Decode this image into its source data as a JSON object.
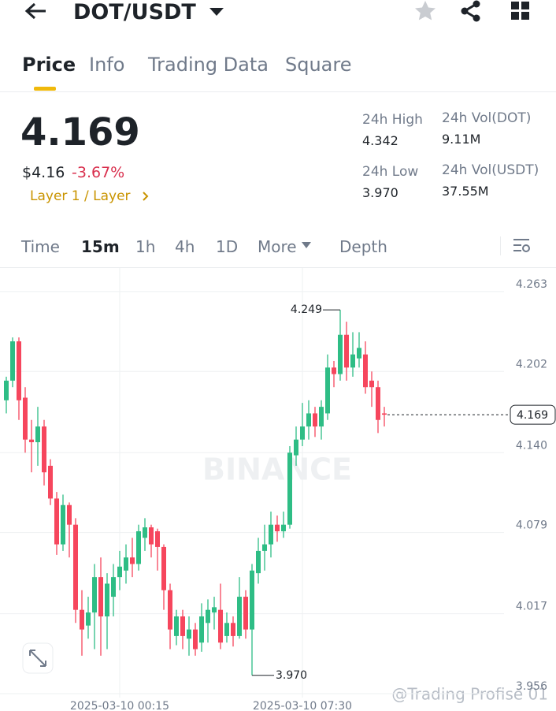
{
  "header": {
    "pair": "DOT/USDT"
  },
  "tabs": [
    "Price",
    "Info",
    "Trading Data",
    "Square"
  ],
  "price": {
    "last": "4.169",
    "usd": "$4.16",
    "change": "-3.67%",
    "tag": "Layer 1 / Layer"
  },
  "stats": [
    {
      "label": "24h High",
      "value": "4.342"
    },
    {
      "label": "24h Vol(DOT)",
      "value": "9.11M"
    },
    {
      "label": "24h Low",
      "value": "3.970"
    },
    {
      "label": "24h Vol(USDT)",
      "value": "37.55M"
    }
  ],
  "timeframes": [
    "Time",
    "15m",
    "1h",
    "4h",
    "1D",
    "More",
    "Depth"
  ],
  "watermark": "BINANCE",
  "credit": "@Trading Profise 01",
  "chart_data": {
    "type": "candlestick",
    "categories": [
      null,
      null,
      null,
      null,
      null,
      null,
      null,
      null,
      null,
      null,
      null,
      null,
      null,
      null,
      null,
      null,
      null,
      null,
      "2025-03-10 00:15",
      null,
      null,
      null,
      null,
      null,
      null,
      null,
      null,
      null,
      null,
      null,
      null,
      null,
      null,
      null,
      null,
      null,
      null,
      null,
      null,
      null,
      null,
      null,
      null,
      null,
      null,
      null,
      null,
      "2025-03-10 07:30",
      null,
      null,
      null,
      null,
      null,
      null,
      null,
      null,
      null,
      null,
      null,
      null,
      null
    ],
    "open": [
      4.18,
      4.195,
      4.225,
      4.182,
      4.15,
      4.148,
      4.16,
      4.13,
      4.105,
      4.07,
      4.1,
      4.085,
      4.02,
      4.008,
      4.018,
      4.045,
      4.015,
      4.03,
      4.045,
      4.05,
      4.06,
      4.055,
      4.075,
      4.083,
      4.08,
      4.068,
      4.035,
      4.0,
      4.015,
      3.998,
      4.005,
      3.995,
      4.01,
      4.018,
      4.02,
      4.0,
      4.01,
      4.0,
      4.03,
      4.005,
      4.048,
      4.065,
      4.07,
      4.085,
      4.08,
      4.085,
      4.138,
      4.15,
      4.16,
      4.17,
      4.16,
      4.17,
      4.205,
      4.2,
      4.23,
      4.205,
      4.212,
      4.215,
      4.195,
      4.19,
      4.17
    ],
    "high": [
      4.198,
      4.228,
      4.228,
      4.19,
      4.165,
      4.175,
      4.165,
      4.135,
      4.11,
      4.108,
      4.102,
      4.09,
      4.035,
      4.03,
      4.055,
      4.06,
      4.048,
      4.055,
      4.065,
      4.07,
      4.075,
      4.085,
      4.09,
      4.085,
      4.082,
      4.07,
      4.04,
      4.02,
      4.02,
      4.015,
      4.01,
      4.025,
      4.028,
      4.03,
      4.04,
      4.018,
      4.015,
      4.045,
      4.035,
      4.055,
      4.075,
      4.085,
      4.095,
      4.092,
      4.095,
      4.145,
      4.16,
      4.178,
      4.18,
      4.175,
      4.18,
      4.215,
      4.21,
      4.249,
      4.24,
      4.232,
      4.232,
      4.225,
      4.202,
      4.195,
      4.175
    ],
    "low": [
      4.17,
      4.19,
      4.165,
      4.14,
      4.125,
      4.13,
      4.115,
      4.1,
      4.062,
      4.065,
      4.06,
      4.01,
      3.985,
      3.998,
      3.99,
      3.985,
      3.99,
      4.015,
      4.035,
      4.04,
      4.045,
      4.05,
      4.065,
      4.06,
      4.05,
      4.02,
      3.99,
      3.993,
      3.99,
      3.985,
      3.985,
      3.988,
      3.995,
      4.005,
      3.99,
      3.995,
      3.992,
      3.998,
      3.998,
      3.97,
      4.04,
      4.05,
      4.06,
      4.072,
      4.075,
      4.082,
      4.13,
      4.145,
      4.15,
      4.152,
      4.15,
      4.165,
      4.19,
      4.195,
      4.195,
      4.198,
      4.205,
      4.185,
      4.175,
      4.155,
      4.16
    ],
    "close": [
      4.195,
      4.225,
      4.18,
      4.15,
      4.148,
      4.16,
      4.125,
      4.105,
      4.07,
      4.1,
      4.085,
      4.02,
      4.005,
      4.018,
      4.045,
      4.015,
      4.04,
      4.045,
      4.053,
      4.06,
      4.055,
      4.08,
      4.083,
      4.07,
      4.068,
      4.035,
      4.005,
      4.015,
      4.0,
      4.005,
      3.99,
      4.015,
      4.02,
      4.022,
      3.995,
      4.01,
      4.0,
      4.03,
      4.005,
      4.05,
      4.065,
      4.07,
      4.085,
      4.08,
      4.085,
      4.14,
      4.15,
      4.16,
      4.17,
      4.16,
      4.175,
      4.205,
      4.2,
      4.23,
      4.205,
      4.215,
      4.22,
      4.19,
      4.19,
      4.165,
      4.169
    ],
    "up_color": "#2ebd85",
    "down_color": "#f6465d",
    "ylim": [
      3.953,
      4.281
    ],
    "yticks": [
      3.956,
      4.017,
      4.079,
      {
        "value": 4.14,
        "label": "4.140"
      },
      4.202,
      4.263
    ],
    "grid": true,
    "annotations": [
      {
        "value": 4.249,
        "label": "4.249"
      },
      {
        "value": 3.97,
        "label": "3.970"
      }
    ],
    "last_price": {
      "value": 4.169,
      "label": "4.169"
    }
  }
}
